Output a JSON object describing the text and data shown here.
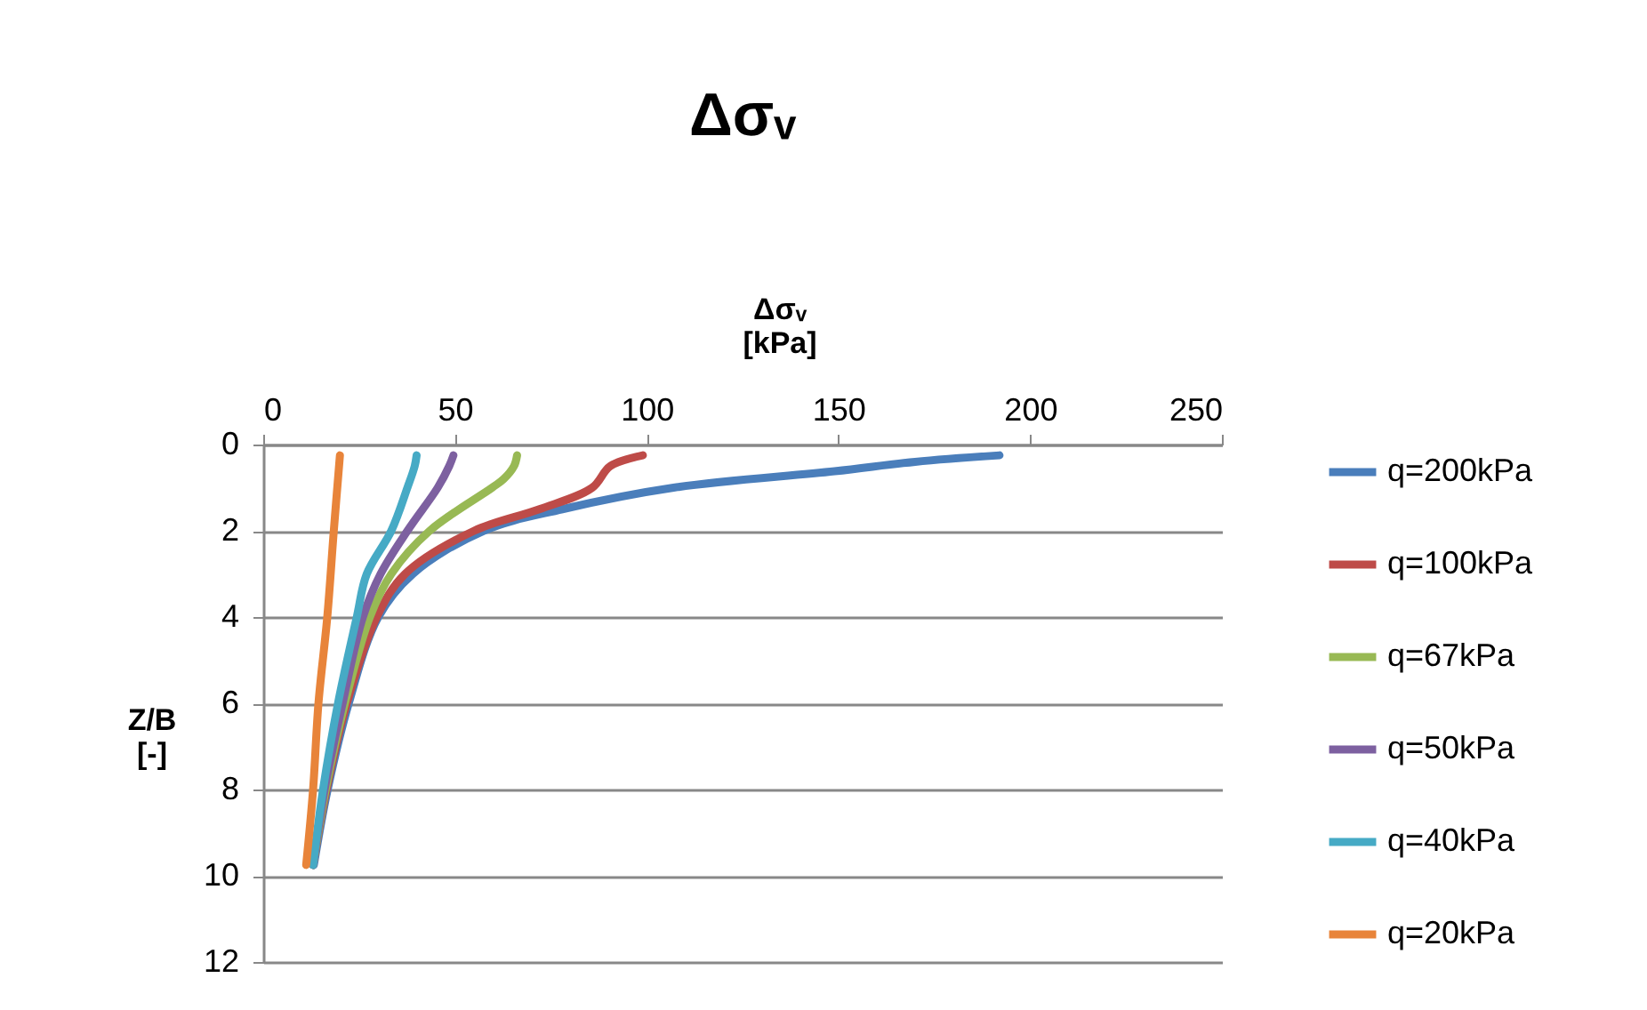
{
  "chart_data": {
    "type": "line",
    "title": "Δσᵥ",
    "xlabel": "Δσᵥ\n[kPa]",
    "ylabel": "Z/B\n[-]",
    "xlim": [
      0,
      250
    ],
    "xticks": [
      0,
      50,
      100,
      150,
      200,
      250
    ],
    "ylim": [
      12,
      0
    ],
    "yticks": [
      0,
      2,
      4,
      6,
      8,
      10,
      12
    ],
    "grid": "y",
    "legend": "right",
    "marker": "none",
    "line_style": "solid",
    "series": [
      {
        "name": "q=200kPa",
        "color": "#4a7ebb",
        "x": [
          192,
          170,
          149,
          107,
          78,
          57.5,
          39,
          30,
          22.3,
          16.8,
          13.2
        ],
        "values": [
          0.25,
          0.4,
          0.62,
          1,
          1.5,
          2,
          3,
          4,
          6,
          8,
          9.75
        ]
      },
      {
        "name": "q=100kPa",
        "color": "#be4b48",
        "x": [
          99,
          90.5,
          85.8,
          72,
          55,
          37,
          29.6,
          21.8,
          16.5,
          13
        ],
        "values": [
          0.25,
          0.5,
          1,
          1.5,
          2,
          3,
          4,
          6,
          8,
          9.75
        ]
      },
      {
        "name": "q=67kPa",
        "color": "#98b954",
        "x": [
          66.2,
          65.4,
          62.7,
          59.7,
          43.4,
          33.4,
          27.8,
          21.3,
          16.3,
          13
        ],
        "values": [
          0.25,
          0.5,
          0.8,
          1,
          2,
          3,
          4,
          6,
          8,
          9.75
        ]
      },
      {
        "name": "q=50kPa",
        "color": "#7d60a0",
        "x": [
          49.6,
          48.5,
          45.5,
          37.6,
          30.6,
          26,
          20.7,
          16,
          13
        ],
        "values": [
          0.25,
          0.5,
          1,
          2,
          3,
          4,
          6,
          8,
          9.75
        ]
      },
      {
        "name": "q=40kPa",
        "color": "#46aac5",
        "x": [
          40,
          39.5,
          37.6,
          33.4,
          27,
          24.4,
          19.5,
          15.6,
          13
        ],
        "values": [
          0.25,
          0.5,
          1,
          2,
          3,
          4,
          6,
          8,
          9.75
        ]
      },
      {
        "name": "q=20kPa",
        "color": "#e8843a",
        "x": [
          20,
          18.4,
          16.7,
          14.4,
          13,
          11.2
        ],
        "values": [
          0.25,
          2,
          4,
          6,
          8,
          9.75
        ]
      }
    ]
  }
}
